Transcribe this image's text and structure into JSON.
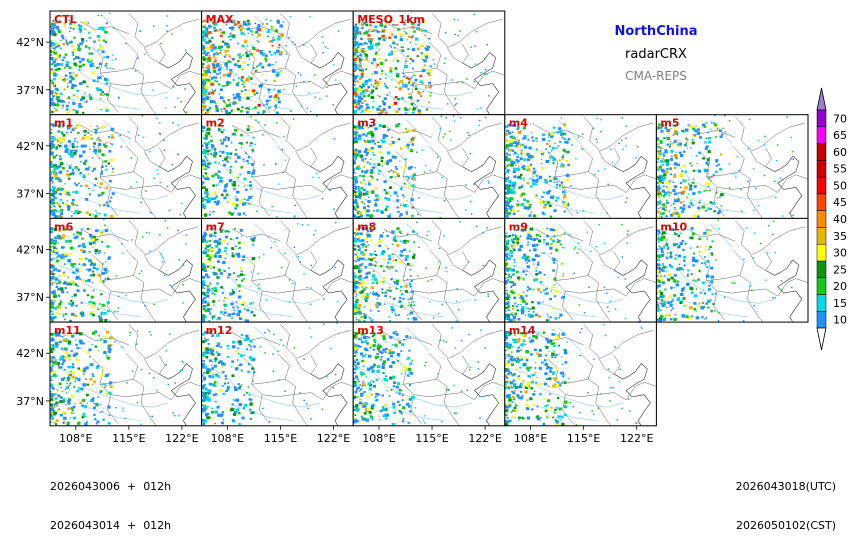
{
  "header": {
    "region": "NorthChina",
    "variable": "radarCRX",
    "system": "CMA-REPS",
    "region_color": "#1010e0"
  },
  "panels": [
    {
      "label": "CTL",
      "lead_strength": 0.45
    },
    {
      "label": "MAX",
      "lead_strength": 0.9
    },
    {
      "label": "MESO_1km",
      "lead_strength": 0.85
    },
    {
      "label": "m1",
      "lead_strength": 0.55
    },
    {
      "label": "m2",
      "lead_strength": 0.3
    },
    {
      "label": "m3",
      "lead_strength": 0.5
    },
    {
      "label": "m4",
      "lead_strength": 0.55
    },
    {
      "label": "m5",
      "lead_strength": 0.6
    },
    {
      "label": "m6",
      "lead_strength": 0.45
    },
    {
      "label": "m7",
      "lead_strength": 0.3
    },
    {
      "label": "m8",
      "lead_strength": 0.5
    },
    {
      "label": "m9",
      "lead_strength": 0.45
    },
    {
      "label": "m10",
      "lead_strength": 0.4
    },
    {
      "label": "m11",
      "lead_strength": 0.5
    },
    {
      "label": "m12",
      "lead_strength": 0.3
    },
    {
      "label": "m13",
      "lead_strength": 0.45
    },
    {
      "label": "m14",
      "lead_strength": 0.5
    }
  ],
  "axes": {
    "lat_ticks": [
      "42°N",
      "37°N"
    ],
    "lon_ticks": [
      "108°E",
      "115°E",
      "122°E"
    ]
  },
  "colorbar": {
    "levels": [
      "10",
      "15",
      "20",
      "25",
      "30",
      "35",
      "40",
      "45",
      "50",
      "55",
      "60",
      "65",
      "70"
    ],
    "colors": [
      "#1e90ff",
      "#00d8e8",
      "#14c814",
      "#0a960a",
      "#ffff00",
      "#e6b800",
      "#ff8c00",
      "#ff4500",
      "#ff0000",
      "#d00000",
      "#c80000",
      "#ff00ff",
      "#9400d3"
    ],
    "over_color": "#9b7fd4",
    "under_color": "#ffffff"
  },
  "footer": {
    "init_utc": "2026043006  +  012h",
    "init_cst": "2026043014  +  012h",
    "valid_utc": "2026043018(UTC)",
    "valid_cst": "2026050102(CST)"
  }
}
